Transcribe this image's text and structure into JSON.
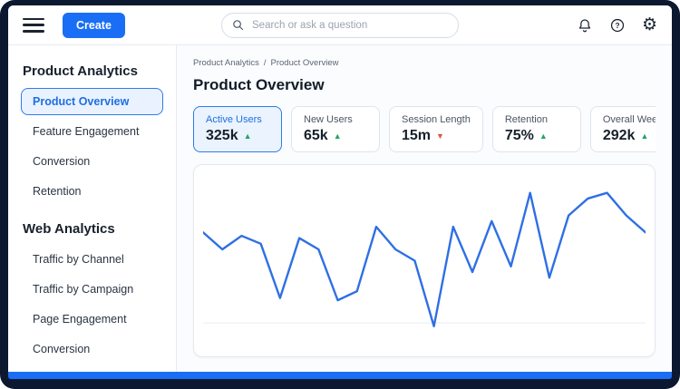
{
  "topbar": {
    "create_label": "Create",
    "search": {
      "placeholder": "Search or ask a question"
    }
  },
  "sidebar": {
    "sections": [
      {
        "heading": "Product Analytics",
        "items": [
          {
            "label": "Product Overview",
            "selected": true
          },
          {
            "label": "Feature Engagement",
            "selected": false
          },
          {
            "label": "Conversion",
            "selected": false
          },
          {
            "label": "Retention",
            "selected": false
          }
        ]
      },
      {
        "heading": "Web Analytics",
        "items": [
          {
            "label": "Traffic by Channel",
            "selected": false
          },
          {
            "label": "Traffic by Campaign",
            "selected": false
          },
          {
            "label": "Page Engagement",
            "selected": false
          },
          {
            "label": "Conversion",
            "selected": false
          }
        ]
      }
    ]
  },
  "main": {
    "breadcrumb": {
      "part1": "Product Analytics",
      "separator": "/",
      "part2": "Product Overview"
    },
    "title": "Product Overview",
    "metrics": [
      {
        "label": "Active Users",
        "value": "325k",
        "trend": "up",
        "selected": true
      },
      {
        "label": "New Users",
        "value": "65k",
        "trend": "up",
        "selected": false
      },
      {
        "label": "Session Length",
        "value": "15m",
        "trend": "down",
        "selected": false
      },
      {
        "label": "Retention",
        "value": "75%",
        "trend": "up",
        "selected": false
      },
      {
        "label": "Overall Weekly A",
        "value": "292k",
        "trend": "up",
        "selected": false
      }
    ]
  },
  "colors": {
    "accent_blue": "#1a6ef5",
    "selected_border": "#2f7bea",
    "trend_up_green": "#27a567",
    "trend_down_red": "#e0524e",
    "line_blue": "#2f6fe4",
    "frame_navy": "#0c1830"
  },
  "chart_data": {
    "type": "line",
    "title": "",
    "xlabel": "",
    "ylabel": "",
    "legend": "none",
    "grid": "one horizontal gridline near bottom",
    "x": [
      1,
      2,
      3,
      4,
      5,
      6,
      7,
      8,
      9,
      10,
      11,
      12,
      13,
      14,
      15,
      16,
      17,
      18,
      19,
      20,
      21,
      22,
      23,
      24
    ],
    "values": [
      100,
      85,
      97,
      90,
      42,
      95,
      85,
      40,
      48,
      105,
      85,
      75,
      17,
      105,
      65,
      110,
      70,
      135,
      60,
      115,
      130,
      135,
      115,
      100
    ],
    "ylim": [
      0,
      150
    ],
    "gridline_y": 20,
    "line_color": "#2f6fe4"
  }
}
